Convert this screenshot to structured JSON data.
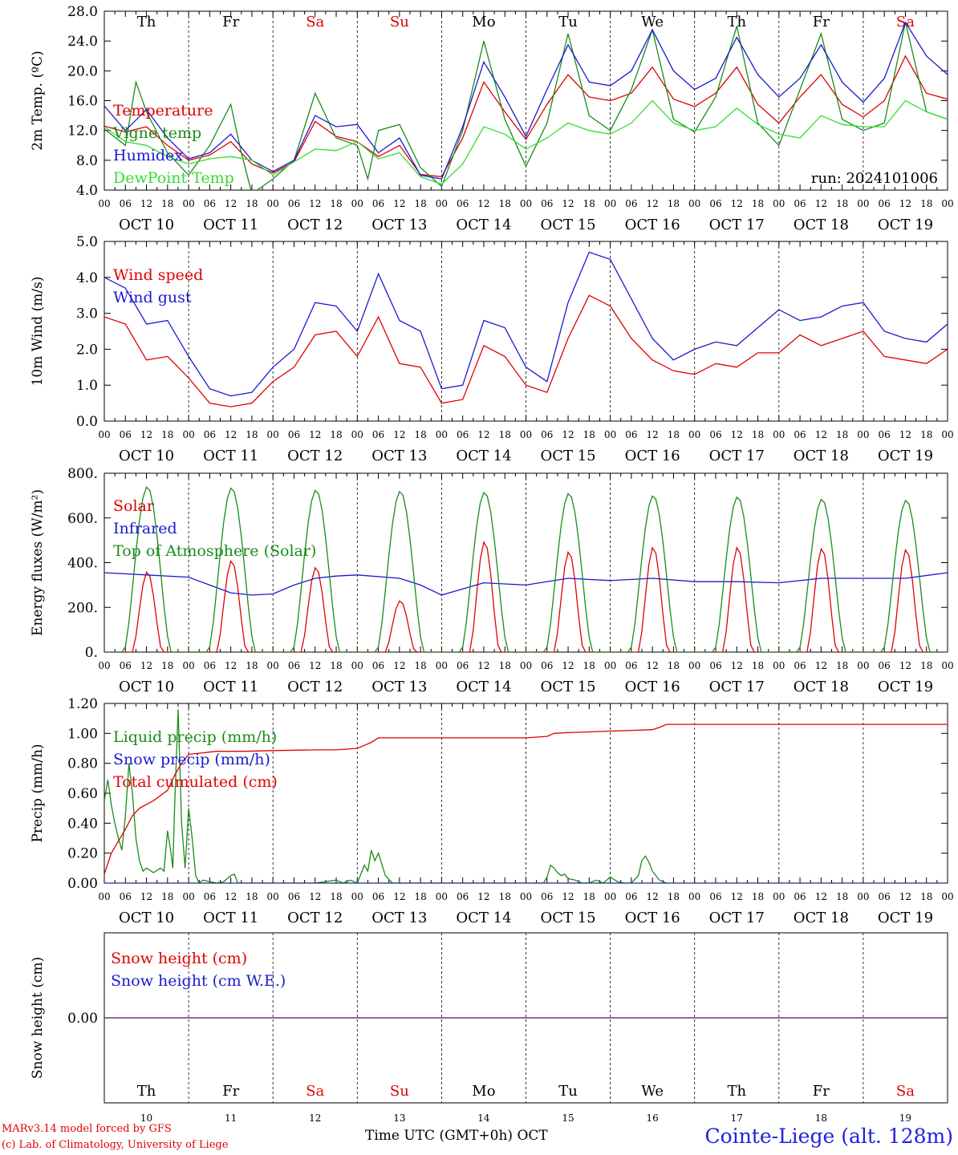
{
  "colors": {
    "temperature": "#e00000",
    "vigne": "#1a8c1a",
    "humidex": "#1a1ad0",
    "dewpoint": "#33dd33",
    "snow_height": "#e00000",
    "snow_we": "#1a1ad0",
    "zero_line": "#7a2a8a"
  },
  "footer": {
    "model": "MARv3.14 model forced by GFS",
    "lab": "(c) Lab. of Climatology, University of Liege",
    "axis_title": "Time UTC (GMT+0h) OCT",
    "station": "Cointe-Liege (alt. 128m)"
  },
  "chart_data": [
    {
      "type": "line",
      "ylabel": "2m Temp. (ºC)",
      "ylim": [
        4.0,
        28.0
      ],
      "yticks": [
        "4.0",
        "8.0",
        "12.0",
        "16.0",
        "20.0",
        "24.0",
        "28.0"
      ],
      "annotation": "run: 2024101006",
      "day_names": [
        "Th",
        "Fr",
        "Sa",
        "Su",
        "Mo",
        "Tu",
        "We",
        "Th",
        "Fr",
        "Sa"
      ],
      "day_dates": [
        "OCT 10",
        "OCT 11",
        "OCT 12",
        "OCT 13",
        "OCT 14",
        "OCT 15",
        "OCT 16",
        "OCT 17",
        "OCT 18",
        "OCT 19"
      ],
      "hour_ticks": [
        "00",
        "06",
        "12",
        "18"
      ],
      "x_unit": "hours since 2024-10-10 00 UTC",
      "series": [
        {
          "name": "Temperature",
          "color_key": "temperature",
          "x": [
            0,
            6,
            12,
            18,
            24,
            30,
            36,
            42,
            48,
            54,
            60,
            66,
            72,
            78,
            84,
            90,
            96,
            102,
            108,
            114,
            120,
            126,
            132,
            138,
            144,
            150,
            156,
            162,
            168,
            174,
            180,
            186,
            192,
            198,
            204,
            210,
            216,
            222,
            228,
            234,
            240
          ],
          "y": [
            12.6,
            11.8,
            12.5,
            10.0,
            8.0,
            8.7,
            10.5,
            7.5,
            6.3,
            7.8,
            13.2,
            11.2,
            10.5,
            8.5,
            10.0,
            6.1,
            5.8,
            11.0,
            18.5,
            14.5,
            10.8,
            15.5,
            19.5,
            16.5,
            16.0,
            17.0,
            20.5,
            16.2,
            15.2,
            17.0,
            20.5,
            15.5,
            13.0,
            16.5,
            19.5,
            15.5,
            13.8,
            16.0,
            22.0,
            17.0,
            16.2
          ]
        },
        {
          "name": "Vigne temp",
          "color_key": "vigne",
          "x": [
            0,
            6,
            9,
            12,
            18,
            24,
            30,
            36,
            39,
            42,
            48,
            54,
            60,
            66,
            72,
            75,
            78,
            84,
            90,
            96,
            102,
            108,
            114,
            120,
            126,
            132,
            138,
            144,
            150,
            156,
            162,
            168,
            174,
            180,
            186,
            192,
            198,
            204,
            210,
            216,
            222,
            228,
            234,
            240
          ],
          "y": [
            12.2,
            10.0,
            18.5,
            14.5,
            9.0,
            6.0,
            10.0,
            15.5,
            9.0,
            3.5,
            5.5,
            8.0,
            17.0,
            11.0,
            10.0,
            5.5,
            12.0,
            12.8,
            7.0,
            4.5,
            12.0,
            24.0,
            13.5,
            7.2,
            13.0,
            25.0,
            14.0,
            12.0,
            17.5,
            25.5,
            13.5,
            11.8,
            16.5,
            26.0,
            13.0,
            10.0,
            17.5,
            25.0,
            13.5,
            12.0,
            13.0,
            26.5,
            14.5,
            13.5
          ]
        },
        {
          "name": "Humidex",
          "color_key": "humidex",
          "x": [
            0,
            6,
            12,
            18,
            24,
            30,
            36,
            42,
            48,
            54,
            60,
            66,
            72,
            78,
            84,
            90,
            96,
            102,
            108,
            114,
            120,
            126,
            132,
            138,
            144,
            150,
            156,
            162,
            168,
            174,
            180,
            186,
            192,
            198,
            204,
            210,
            216,
            222,
            228,
            234,
            240
          ],
          "y": [
            15.3,
            12.0,
            14.8,
            11.0,
            8.2,
            9.0,
            11.5,
            8.0,
            6.5,
            8.0,
            14.0,
            12.5,
            12.8,
            9.0,
            11.0,
            6.0,
            5.5,
            12.5,
            21.2,
            16.5,
            11.2,
            17.5,
            23.5,
            18.5,
            18.0,
            20.0,
            25.5,
            20.0,
            17.5,
            19.0,
            24.5,
            19.5,
            16.5,
            19.0,
            23.5,
            18.5,
            15.8,
            19.0,
            26.5,
            22.0,
            19.5
          ]
        },
        {
          "name": "DewPoint Temp",
          "color_key": "dewpoint",
          "x": [
            0,
            6,
            12,
            18,
            24,
            30,
            36,
            42,
            48,
            54,
            60,
            66,
            72,
            78,
            84,
            90,
            96,
            102,
            108,
            114,
            120,
            126,
            132,
            138,
            144,
            150,
            156,
            162,
            168,
            174,
            180,
            186,
            192,
            198,
            204,
            210,
            216,
            222,
            228,
            234,
            240
          ],
          "y": [
            12.5,
            10.5,
            10.0,
            8.5,
            7.5,
            8.2,
            8.5,
            8.0,
            6.0,
            7.8,
            9.5,
            9.3,
            10.5,
            8.2,
            9.0,
            5.8,
            4.8,
            7.5,
            12.5,
            11.5,
            9.5,
            11.0,
            13.0,
            12.0,
            11.5,
            13.0,
            16.0,
            13.0,
            12.0,
            12.5,
            15.0,
            12.8,
            11.5,
            11.0,
            14.0,
            12.8,
            12.5,
            12.5,
            16.0,
            14.5,
            13.5
          ]
        }
      ]
    },
    {
      "type": "line",
      "ylabel": "10m Wind (m/s)",
      "ylim": [
        0.0,
        5.0
      ],
      "yticks": [
        "0.0",
        "1.0",
        "2.0",
        "3.0",
        "4.0",
        "5.0"
      ],
      "day_dates": [
        "OCT 10",
        "OCT 11",
        "OCT 12",
        "OCT 13",
        "OCT 14",
        "OCT 15",
        "OCT 16",
        "OCT 17",
        "OCT 18",
        "OCT 19"
      ],
      "hour_ticks": [
        "00",
        "06",
        "12",
        "18"
      ],
      "x_unit": "hours since 2024-10-10 00 UTC",
      "series": [
        {
          "name": "Wind speed",
          "color_key": "temperature",
          "x": [
            0,
            6,
            12,
            18,
            24,
            30,
            36,
            42,
            48,
            54,
            60,
            66,
            72,
            78,
            84,
            90,
            96,
            102,
            108,
            114,
            120,
            126,
            132,
            138,
            144,
            150,
            156,
            162,
            168,
            174,
            180,
            186,
            192,
            198,
            204,
            210,
            216,
            222,
            228,
            234,
            240
          ],
          "y": [
            2.9,
            2.7,
            1.7,
            1.8,
            1.2,
            0.5,
            0.4,
            0.5,
            1.1,
            1.5,
            2.4,
            2.5,
            1.8,
            2.9,
            1.6,
            1.5,
            0.5,
            0.6,
            2.1,
            1.8,
            1.0,
            0.8,
            2.3,
            3.5,
            3.2,
            2.3,
            1.7,
            1.4,
            1.3,
            1.6,
            1.5,
            1.9,
            1.9,
            2.4,
            2.1,
            2.3,
            2.5,
            1.8,
            1.7,
            1.6,
            2.0
          ]
        },
        {
          "name": "Wind gust",
          "color_key": "humidex",
          "x": [
            0,
            6,
            12,
            18,
            24,
            30,
            36,
            42,
            48,
            54,
            60,
            66,
            72,
            78,
            84,
            90,
            96,
            102,
            108,
            114,
            120,
            126,
            132,
            138,
            144,
            150,
            156,
            162,
            168,
            174,
            180,
            186,
            192,
            198,
            204,
            210,
            216,
            222,
            228,
            234,
            240
          ],
          "y": [
            4.0,
            3.7,
            2.7,
            2.8,
            1.8,
            0.9,
            0.7,
            0.8,
            1.5,
            2.0,
            3.3,
            3.2,
            2.5,
            4.1,
            2.8,
            2.5,
            0.9,
            1.0,
            2.8,
            2.6,
            1.5,
            1.1,
            3.3,
            4.7,
            4.5,
            3.4,
            2.3,
            1.7,
            2.0,
            2.2,
            2.1,
            2.6,
            3.1,
            2.8,
            2.9,
            3.2,
            3.3,
            2.5,
            2.3,
            2.2,
            2.7
          ]
        }
      ]
    },
    {
      "type": "line",
      "ylabel": "Energy fluxes (W/m²)",
      "ylim": [
        0,
        800
      ],
      "yticks": [
        "0.",
        "200.",
        "400.",
        "600.",
        "800."
      ],
      "day_dates": [
        "OCT 10",
        "OCT 11",
        "OCT 12",
        "OCT 13",
        "OCT 14",
        "OCT 15",
        "OCT 16",
        "OCT 17",
        "OCT 18",
        "OCT 19"
      ],
      "hour_ticks": [
        "00",
        "06",
        "12",
        "18"
      ],
      "x_unit": "hours since 2024-10-10 00 UTC",
      "series": [
        {
          "name": "Solar",
          "color_key": "temperature",
          "daily_peak": [
            360,
            410,
            380,
            230,
            495,
            450,
            470,
            470,
            465,
            460
          ]
        },
        {
          "name": "Infrared",
          "color_key": "humidex",
          "x": [
            0,
            12,
            24,
            30,
            36,
            42,
            48,
            54,
            60,
            66,
            72,
            84,
            90,
            96,
            108,
            120,
            132,
            144,
            156,
            168,
            180,
            192,
            204,
            216,
            228,
            240
          ],
          "y": [
            355,
            345,
            335,
            300,
            265,
            255,
            260,
            300,
            330,
            340,
            345,
            330,
            300,
            255,
            310,
            300,
            330,
            320,
            330,
            315,
            315,
            310,
            330,
            330,
            330,
            355
          ]
        },
        {
          "name": "Top of Atmosphere (Solar)",
          "color_key": "vigne",
          "daily_peak": [
            740,
            735,
            725,
            720,
            715,
            710,
            700,
            695,
            685,
            680
          ]
        }
      ]
    },
    {
      "type": "line",
      "ylabel": "Precip (mm/h)",
      "ylim": [
        0.0,
        1.2
      ],
      "yticks": [
        "0.00",
        "0.20",
        "0.40",
        "0.60",
        "0.80",
        "1.00",
        "1.20"
      ],
      "day_dates": [
        "OCT 10",
        "OCT 11",
        "OCT 12",
        "OCT 13",
        "OCT 14",
        "OCT 15",
        "OCT 16",
        "OCT 17",
        "OCT 18",
        "OCT 19"
      ],
      "hour_ticks": [
        "00",
        "06",
        "12",
        "18"
      ],
      "x_unit": "hours since 2024-10-10 00 UTC",
      "series": [
        {
          "name": "Liquid precip (mm/h)",
          "color_key": "vigne",
          "x": [
            0,
            1,
            2,
            3,
            4,
            5,
            6,
            7,
            8,
            9,
            10,
            11,
            12,
            14,
            16,
            17,
            18,
            19,
            19.5,
            20,
            21,
            22,
            23,
            24,
            25,
            26,
            27,
            28,
            30,
            32,
            34,
            36,
            37,
            38,
            40,
            60,
            66,
            68,
            70,
            72,
            74,
            75,
            76,
            77,
            78,
            80,
            82,
            84,
            125,
            126,
            127,
            128,
            129,
            130,
            131,
            132,
            134,
            136,
            138,
            140,
            142,
            144,
            146,
            148,
            150,
            152,
            153,
            154,
            155,
            156,
            158,
            160
          ],
          "y": [
            0.55,
            0.69,
            0.52,
            0.4,
            0.3,
            0.22,
            0.45,
            0.8,
            0.6,
            0.3,
            0.15,
            0.08,
            0.1,
            0.07,
            0.1,
            0.08,
            0.35,
            0.2,
            0.1,
            0.5,
            1.16,
            0.4,
            0.1,
            0.5,
            0.3,
            0.05,
            0.0,
            0.02,
            0.01,
            0.0,
            0.01,
            0.05,
            0.06,
            0.0,
            0.0,
            0.0,
            0.02,
            0.0,
            0.02,
            0.0,
            0.12,
            0.08,
            0.22,
            0.15,
            0.2,
            0.05,
            0.0,
            0.0,
            0.0,
            0.04,
            0.12,
            0.1,
            0.07,
            0.05,
            0.06,
            0.03,
            0.02,
            0.0,
            0.0,
            0.02,
            0.0,
            0.04,
            0.01,
            0.0,
            0.0,
            0.05,
            0.15,
            0.18,
            0.14,
            0.08,
            0.02,
            0.0
          ]
        },
        {
          "name": "Snow precip (mm/h)",
          "color_key": "humidex",
          "x": [
            0,
            240
          ],
          "y": [
            0.0,
            0.0
          ]
        },
        {
          "name": "Total cumulated (cm)",
          "color_key": "temperature",
          "x": [
            0,
            2,
            4,
            6,
            8,
            10,
            14,
            18,
            20,
            22,
            24,
            28,
            32,
            36,
            40,
            48,
            60,
            66,
            72,
            74,
            76,
            78,
            84,
            96,
            108,
            120,
            126,
            128,
            132,
            138,
            144,
            150,
            156,
            158,
            160,
            168,
            192,
            216,
            240
          ],
          "y": [
            0.06,
            0.2,
            0.28,
            0.36,
            0.45,
            0.5,
            0.55,
            0.62,
            0.72,
            0.8,
            0.86,
            0.87,
            0.88,
            0.88,
            0.88,
            0.885,
            0.89,
            0.89,
            0.9,
            0.92,
            0.94,
            0.97,
            0.97,
            0.97,
            0.97,
            0.97,
            0.98,
            1.0,
            1.005,
            1.01,
            1.015,
            1.02,
            1.025,
            1.04,
            1.06,
            1.06,
            1.06,
            1.06,
            1.06
          ]
        }
      ]
    },
    {
      "type": "line",
      "ylabel": "Snow height (cm)",
      "yticks": [
        "0.00"
      ],
      "day_names": [
        "Th",
        "Fr",
        "Sa",
        "Su",
        "Mo",
        "Tu",
        "We",
        "Th",
        "Fr",
        "Sa"
      ],
      "day_numbers": [
        "10",
        "11",
        "12",
        "13",
        "14",
        "15",
        "16",
        "17",
        "18",
        "19"
      ],
      "x_unit": "hours since 2024-10-10 00 UTC",
      "series": [
        {
          "name": "Snow height (cm)",
          "color_key": "snow_height",
          "x": [
            0,
            240
          ],
          "y": [
            0.0,
            0.0
          ]
        },
        {
          "name": "Snow height (cm W.E.)",
          "color_key": "snow_we",
          "x": [
            0,
            240
          ],
          "y": [
            0.0,
            0.0
          ]
        }
      ]
    }
  ]
}
